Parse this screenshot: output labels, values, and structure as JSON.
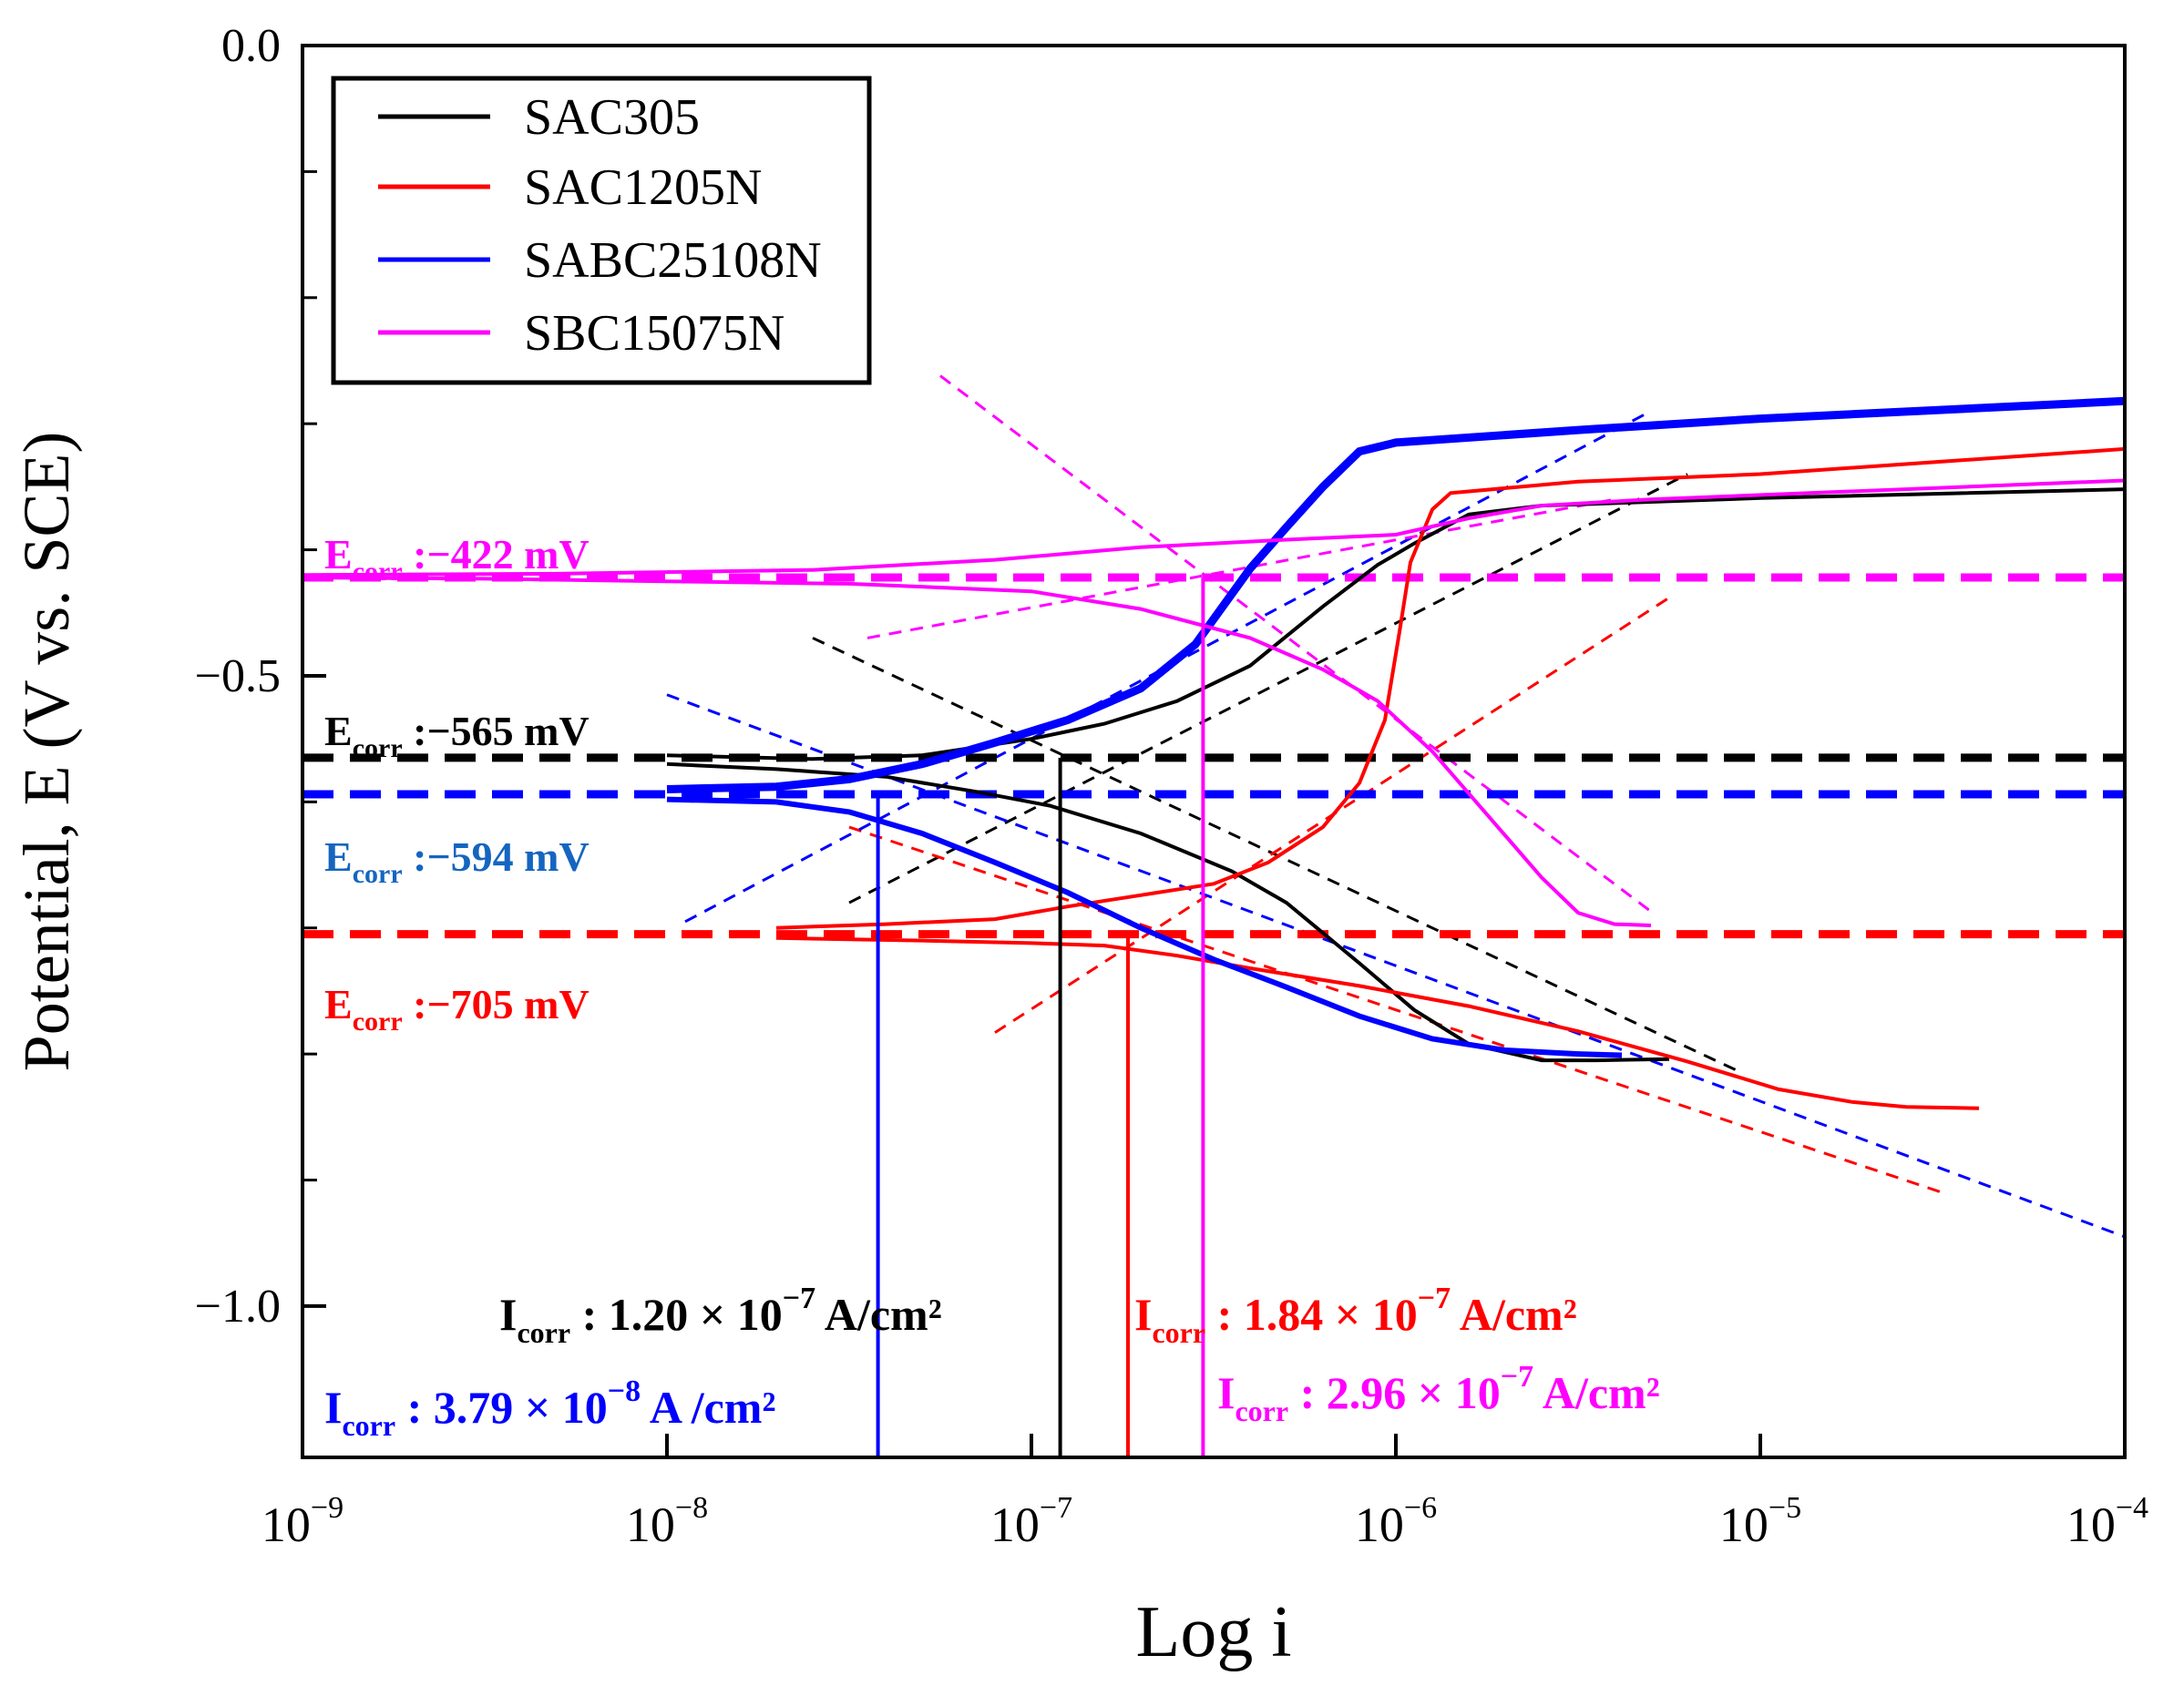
{
  "chart_data": {
    "type": "line",
    "x_scale": "log",
    "xlabel": "Log i",
    "ylabel": "Potential, E (V vs. SCE)",
    "xlim_exponent": [
      -9,
      -4
    ],
    "ylim": [
      -1.12,
      0.0
    ],
    "x_ticks": [
      {
        "base": "10",
        "exp": "−9",
        "value": -9
      },
      {
        "base": "10",
        "exp": "−8",
        "value": -8
      },
      {
        "base": "10",
        "exp": "−7",
        "value": -7
      },
      {
        "base": "10",
        "exp": "−6",
        "value": -6
      },
      {
        "base": "10",
        "exp": "−5",
        "value": -5
      },
      {
        "base": "10",
        "exp": "−4",
        "value": -4
      }
    ],
    "y_ticks": [
      {
        "label": "0.0",
        "value": 0.0
      },
      {
        "label": "−0.5",
        "value": -0.5
      },
      {
        "label": "−1.0",
        "value": -1.0
      }
    ],
    "y_minor_ticks": [
      -0.1,
      -0.2,
      -0.3,
      -0.4,
      -0.6,
      -0.7,
      -0.8,
      -0.9
    ],
    "legend_position": "top-left",
    "series": [
      {
        "name": "SAC305",
        "color": "#000000",
        "ecorr_mv": -565,
        "ecorr_text": "−565 mV",
        "icorr_log": -6.921,
        "icorr_mant": "1.20 × 10",
        "icorr_exp": "−7",
        "icorr_unit": "A/cm²",
        "cathodic": [
          [
            -8.0,
            -0.57
          ],
          [
            -7.7,
            -0.574
          ],
          [
            -7.4,
            -0.58
          ],
          [
            -7.15,
            -0.592
          ],
          [
            -6.95,
            -0.603
          ],
          [
            -6.7,
            -0.625
          ],
          [
            -6.45,
            -0.655
          ],
          [
            -6.3,
            -0.68
          ],
          [
            -6.1,
            -0.728
          ],
          [
            -5.95,
            -0.765
          ],
          [
            -5.8,
            -0.792
          ],
          [
            -5.6,
            -0.805
          ],
          [
            -5.45,
            -0.805
          ],
          [
            -5.25,
            -0.804
          ]
        ],
        "anodic": [
          [
            -8.0,
            -0.563
          ],
          [
            -7.6,
            -0.566
          ],
          [
            -7.3,
            -0.563
          ],
          [
            -7.0,
            -0.55
          ],
          [
            -6.8,
            -0.538
          ],
          [
            -6.6,
            -0.52
          ],
          [
            -6.4,
            -0.492
          ],
          [
            -6.2,
            -0.445
          ],
          [
            -6.05,
            -0.412
          ],
          [
            -5.95,
            -0.395
          ],
          [
            -5.8,
            -0.372
          ],
          [
            -5.6,
            -0.365
          ],
          [
            -5.0,
            -0.359
          ],
          [
            -4.0,
            -0.352
          ]
        ],
        "tafel_cathodic": [
          [
            -7.6,
            -0.47
          ],
          [
            -5.05,
            -0.815
          ]
        ],
        "tafel_anodic": [
          [
            -7.5,
            -0.68
          ],
          [
            -5.2,
            -0.34
          ]
        ]
      },
      {
        "name": "SAC1205N",
        "color": "#ff0000",
        "ecorr_mv": -705,
        "ecorr_text": "−705 mV",
        "icorr_log": -6.735,
        "icorr_mant": "1.84 × 10",
        "icorr_exp": "−7",
        "icorr_unit": "A/cm²",
        "cathodic": [
          [
            -7.7,
            -0.708
          ],
          [
            -7.3,
            -0.71
          ],
          [
            -7.0,
            -0.712
          ],
          [
            -6.8,
            -0.714
          ],
          [
            -6.6,
            -0.722
          ],
          [
            -6.4,
            -0.732
          ],
          [
            -6.1,
            -0.746
          ],
          [
            -5.8,
            -0.762
          ],
          [
            -5.5,
            -0.782
          ],
          [
            -5.2,
            -0.806
          ],
          [
            -4.95,
            -0.828
          ],
          [
            -4.75,
            -0.838
          ],
          [
            -4.6,
            -0.842
          ],
          [
            -4.4,
            -0.843
          ]
        ],
        "anodic": [
          [
            -7.7,
            -0.7
          ],
          [
            -7.4,
            -0.697
          ],
          [
            -7.1,
            -0.693
          ],
          [
            -6.9,
            -0.683
          ],
          [
            -6.7,
            -0.674
          ],
          [
            -6.5,
            -0.665
          ],
          [
            -6.35,
            -0.648
          ],
          [
            -6.2,
            -0.62
          ],
          [
            -6.1,
            -0.585
          ],
          [
            -6.03,
            -0.535
          ],
          [
            -5.99,
            -0.465
          ],
          [
            -5.96,
            -0.41
          ],
          [
            -5.9,
            -0.368
          ],
          [
            -5.85,
            -0.355
          ],
          [
            -5.5,
            -0.346
          ],
          [
            -5.0,
            -0.34
          ],
          [
            -4.0,
            -0.32
          ]
        ],
        "tafel_cathodic": [
          [
            -7.5,
            -0.62
          ],
          [
            -4.5,
            -0.91
          ]
        ],
        "tafel_anodic": [
          [
            -7.1,
            -0.783
          ],
          [
            -5.25,
            -0.438
          ]
        ]
      },
      {
        "name": "SABC25108N",
        "color": "#0000ff",
        "ecorr_mv": -594,
        "ecorr_text": "−594 mV",
        "icorr_log": -7.421,
        "icorr_mant": "3.79 × 10",
        "icorr_exp": "−8",
        "icorr_unit": "A /cm²",
        "cathodic": [
          [
            -8.0,
            -0.598
          ],
          [
            -7.7,
            -0.6
          ],
          [
            -7.5,
            -0.608
          ],
          [
            -7.3,
            -0.625
          ],
          [
            -7.1,
            -0.648
          ],
          [
            -6.9,
            -0.672
          ],
          [
            -6.7,
            -0.7
          ],
          [
            -6.5,
            -0.725
          ],
          [
            -6.3,
            -0.747
          ],
          [
            -6.1,
            -0.77
          ],
          [
            -5.9,
            -0.788
          ],
          [
            -5.7,
            -0.797
          ],
          [
            -5.5,
            -0.8
          ],
          [
            -5.38,
            -0.801
          ]
        ],
        "anodic": [
          [
            -8.0,
            -0.59
          ],
          [
            -7.7,
            -0.588
          ],
          [
            -7.5,
            -0.582
          ],
          [
            -7.3,
            -0.57
          ],
          [
            -7.1,
            -0.553
          ],
          [
            -6.9,
            -0.535
          ],
          [
            -6.7,
            -0.51
          ],
          [
            -6.55,
            -0.475
          ],
          [
            -6.4,
            -0.415
          ],
          [
            -6.3,
            -0.382
          ],
          [
            -6.2,
            -0.35
          ],
          [
            -6.1,
            -0.322
          ],
          [
            -6.0,
            -0.315
          ],
          [
            -5.5,
            -0.305
          ],
          [
            -5.0,
            -0.296
          ],
          [
            -4.0,
            -0.282
          ]
        ],
        "tafel_cathodic": [
          [
            -8.0,
            -0.515
          ],
          [
            -4.0,
            -0.945
          ]
        ],
        "tafel_anodic": [
          [
            -7.95,
            -0.695
          ],
          [
            -5.3,
            -0.29
          ]
        ]
      },
      {
        "name": "SBC15075N",
        "color": "#ff00ff",
        "ecorr_mv": -422,
        "ecorr_text": "−422 mV",
        "icorr_log": -6.529,
        "icorr_mant": "2.96 × 10",
        "icorr_exp": "−7",
        "icorr_unit": "A/cm²",
        "cathodic": [
          [
            -9.0,
            -0.422
          ],
          [
            -8.5,
            -0.423
          ],
          [
            -8.0,
            -0.425
          ],
          [
            -7.5,
            -0.427
          ],
          [
            -7.0,
            -0.433
          ],
          [
            -6.7,
            -0.447
          ],
          [
            -6.4,
            -0.47
          ],
          [
            -6.2,
            -0.495
          ],
          [
            -6.05,
            -0.52
          ],
          [
            -5.9,
            -0.56
          ],
          [
            -5.75,
            -0.61
          ],
          [
            -5.6,
            -0.66
          ],
          [
            -5.5,
            -0.688
          ],
          [
            -5.4,
            -0.697
          ],
          [
            -5.3,
            -0.698
          ]
        ],
        "anodic": [
          [
            -9.0,
            -0.42
          ],
          [
            -8.3,
            -0.419
          ],
          [
            -7.6,
            -0.416
          ],
          [
            -7.1,
            -0.408
          ],
          [
            -6.7,
            -0.398
          ],
          [
            -6.3,
            -0.392
          ],
          [
            -6.0,
            -0.388
          ],
          [
            -5.8,
            -0.375
          ],
          [
            -5.6,
            -0.365
          ],
          [
            -5.3,
            -0.36
          ],
          [
            -4.0,
            -0.345
          ]
        ],
        "tafel_cathodic": [
          [
            -7.25,
            -0.262
          ],
          [
            -5.3,
            -0.687
          ]
        ],
        "tafel_anodic": [
          [
            -7.45,
            -0.47
          ],
          [
            -5.4,
            -0.36
          ]
        ]
      }
    ]
  }
}
